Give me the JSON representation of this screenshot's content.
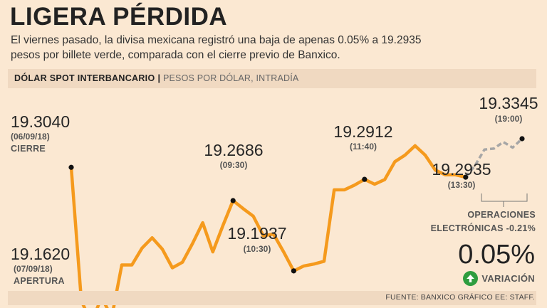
{
  "header": {
    "title": "LIGERA PÉRDIDA",
    "subtitle_line1": "El viernes pasado, la divisa mexicana registró una baja de apenas 0.05% a 19.2935",
    "subtitle_line2": "pesos por billete verde, comparada con el cierre previo de Banxico."
  },
  "band": {
    "bold": "DÓLAR SPOT INTERBANCARIO",
    "separator": "|",
    "light": "PESOS POR DÓLAR, INTRADÍA"
  },
  "chart_data": {
    "type": "line",
    "ylabel": "PESOS POR DÓLAR",
    "series": [
      {
        "values": [
          19.304,
          19.162,
          19.138,
          19.166,
          19.144,
          19.2,
          19.2,
          19.218,
          19.229,
          19.217,
          19.197,
          19.203,
          19.223,
          19.245,
          19.214,
          19.242,
          19.2686,
          19.26,
          19.252,
          19.231,
          19.233,
          19.214,
          19.1937,
          19.199,
          19.201,
          19.204,
          19.28,
          19.28,
          19.285,
          19.2912,
          19.286,
          19.291,
          19.31,
          19.317,
          19.327,
          19.317,
          19.301,
          19.296,
          19.296,
          19.2935
        ]
      },
      {
        "name": "Operaciones electrónicas",
        "values": [
          19.2935,
          19.306,
          19.323,
          19.324,
          19.331,
          19.325,
          19.3345
        ]
      }
    ],
    "annotations": [
      {
        "value": "19.3040",
        "time": "(06/09/18)",
        "caption": "CIERRE"
      },
      {
        "value": "19.1620",
        "time": "(07/09/18)",
        "caption": "APERTURA"
      },
      {
        "value": "19.2686",
        "time": "(09:30)"
      },
      {
        "value": "19.1937",
        "time": "(10:30)"
      },
      {
        "value": "19.2912",
        "time": "(11:40)"
      },
      {
        "value": "19.2935",
        "time": "(13:30)"
      },
      {
        "value": "19.3345",
        "time": "(19:00)"
      }
    ],
    "ops_label": [
      "OPERACIONES",
      "ELECTRÓNICAS -0.21%"
    ],
    "colors": {
      "line": "#f59a1d",
      "after_hours": "#a6a6a6",
      "marker": "#111111"
    }
  },
  "summary": {
    "variation_value": "0.05%",
    "variation_label": "VARIACIÓN",
    "direction_icon": "arrow-up-icon",
    "icon_color": "#2e9d3f"
  },
  "footer": {
    "source": "FUENTE: BANXICO GRÁFICO EE: STAFF."
  }
}
